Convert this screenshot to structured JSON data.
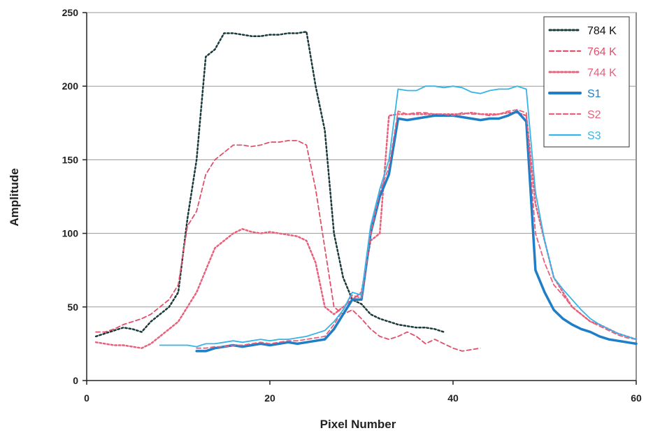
{
  "chart_data": {
    "type": "line",
    "title": "",
    "xlabel": "Pixel Number",
    "ylabel": "Amplitude",
    "xlim": [
      0,
      60
    ],
    "ylim": [
      0,
      250
    ],
    "x_ticks": [
      0,
      20,
      40,
      60
    ],
    "y_ticks": [
      0,
      50,
      100,
      150,
      200,
      250
    ],
    "grid": "horizontal",
    "legend_position": "top-right",
    "series": [
      {
        "name": "784 K",
        "color": "#1a3a3a",
        "style": "dotted",
        "x": [
          1,
          2,
          3,
          4,
          5,
          6,
          7,
          8,
          9,
          10,
          11,
          12,
          13,
          14,
          15,
          16,
          17,
          18,
          19,
          20,
          21,
          22,
          23,
          24,
          25,
          26,
          27,
          28,
          29,
          30,
          31,
          32,
          33,
          34,
          35,
          36,
          37,
          38,
          39
        ],
        "y": [
          30,
          32,
          34,
          36,
          35,
          33,
          40,
          45,
          50,
          60,
          110,
          150,
          220,
          225,
          236,
          236,
          235,
          234,
          234,
          235,
          235,
          236,
          236,
          237,
          200,
          170,
          100,
          70,
          55,
          52,
          45,
          42,
          40,
          38,
          37,
          36,
          36,
          35,
          33
        ]
      },
      {
        "name": "764 K",
        "color": "#e0506a",
        "style": "dashed",
        "x": [
          1,
          2,
          3,
          4,
          5,
          6,
          7,
          8,
          9,
          10,
          11,
          12,
          13,
          14,
          15,
          16,
          17,
          18,
          19,
          20,
          21,
          22,
          23,
          24,
          25,
          26,
          27,
          28,
          29,
          30,
          31,
          32,
          33,
          34,
          35,
          36,
          37,
          38,
          39,
          40,
          41,
          42,
          43
        ],
        "y": [
          33,
          33,
          35,
          38,
          40,
          42,
          45,
          50,
          55,
          65,
          105,
          115,
          140,
          150,
          155,
          160,
          160,
          159,
          160,
          162,
          162,
          163,
          163,
          160,
          130,
          90,
          50,
          45,
          48,
          42,
          35,
          30,
          28,
          30,
          33,
          30,
          25,
          28,
          25,
          22,
          20,
          21,
          22
        ]
      },
      {
        "name": "744 K",
        "color": "#e8607a",
        "style": "dotted",
        "x": [
          1,
          2,
          3,
          4,
          5,
          6,
          7,
          8,
          9,
          10,
          11,
          12,
          13,
          14,
          15,
          16,
          17,
          18,
          19,
          20,
          21,
          22,
          23,
          24,
          25,
          26,
          27,
          28,
          29,
          30,
          31,
          32,
          33,
          34,
          35,
          36,
          37,
          38,
          39,
          40,
          41,
          42,
          43,
          44,
          45,
          46,
          47,
          48,
          49,
          50,
          51,
          52,
          53,
          54,
          55,
          56,
          57,
          58,
          59,
          60
        ],
        "y": [
          26,
          25,
          24,
          24,
          23,
          22,
          25,
          30,
          35,
          40,
          50,
          60,
          75,
          90,
          95,
          100,
          103,
          101,
          100,
          101,
          100,
          99,
          98,
          95,
          80,
          50,
          45,
          50,
          55,
          60,
          95,
          100,
          180,
          181,
          181,
          181,
          181,
          181,
          181,
          181,
          181,
          182,
          181,
          181,
          181,
          182,
          182,
          180,
          120,
          95,
          70,
          60,
          50,
          45,
          40,
          38,
          35,
          32,
          30,
          28
        ]
      },
      {
        "name": "S1",
        "color": "#1e7ec8",
        "style": "solid-thick",
        "x": [
          12,
          13,
          14,
          15,
          16,
          17,
          18,
          19,
          20,
          21,
          22,
          23,
          24,
          25,
          26,
          27,
          28,
          29,
          30,
          31,
          32,
          33,
          34,
          35,
          36,
          37,
          38,
          39,
          40,
          41,
          42,
          43,
          44,
          45,
          46,
          47,
          48,
          49,
          50,
          51,
          52,
          53,
          54,
          55,
          56,
          57,
          58,
          59,
          60
        ],
        "y": [
          20,
          20,
          22,
          23,
          24,
          23,
          24,
          25,
          24,
          25,
          26,
          25,
          26,
          27,
          28,
          35,
          45,
          55,
          55,
          100,
          125,
          140,
          178,
          177,
          178,
          179,
          180,
          180,
          180,
          179,
          178,
          177,
          178,
          178,
          180,
          183,
          176,
          75,
          60,
          48,
          42,
          38,
          35,
          33,
          30,
          28,
          27,
          26,
          25
        ]
      },
      {
        "name": "S2",
        "color": "#e8607a",
        "style": "dashed",
        "x": [
          12,
          13,
          14,
          15,
          16,
          17,
          18,
          19,
          20,
          21,
          22,
          23,
          24,
          25,
          26,
          27,
          28,
          29,
          30,
          31,
          32,
          33,
          34,
          35,
          36,
          37,
          38,
          39,
          40,
          41,
          42,
          43,
          44,
          45,
          46,
          47,
          48,
          49,
          50,
          51,
          52,
          53,
          54,
          55,
          56,
          57,
          58,
          59,
          60
        ],
        "y": [
          22,
          22,
          23,
          23,
          24,
          24,
          25,
          26,
          25,
          26,
          27,
          27,
          28,
          29,
          30,
          38,
          48,
          58,
          56,
          100,
          128,
          145,
          183,
          181,
          182,
          182,
          181,
          181,
          180,
          182,
          181,
          181,
          180,
          181,
          183,
          184,
          182,
          100,
          80,
          65,
          58,
          50,
          45,
          40,
          37,
          34,
          31,
          29,
          28
        ]
      },
      {
        "name": "S3",
        "color": "#34b4e8",
        "style": "solid",
        "x": [
          8,
          9,
          10,
          11,
          12,
          13,
          14,
          15,
          16,
          17,
          18,
          19,
          20,
          21,
          22,
          23,
          24,
          25,
          26,
          27,
          28,
          29,
          30,
          31,
          32,
          33,
          34,
          35,
          36,
          37,
          38,
          39,
          40,
          41,
          42,
          43,
          44,
          45,
          46,
          47,
          48,
          49,
          50,
          51,
          52,
          53,
          54,
          55,
          56,
          57,
          58,
          59,
          60
        ],
        "y": [
          24,
          24,
          24,
          24,
          23,
          25,
          25,
          26,
          27,
          26,
          27,
          28,
          27,
          28,
          28,
          29,
          30,
          32,
          34,
          40,
          48,
          60,
          58,
          105,
          130,
          150,
          198,
          197,
          197,
          200,
          200,
          199,
          200,
          199,
          196,
          195,
          197,
          198,
          198,
          200,
          198,
          128,
          95,
          70,
          62,
          55,
          48,
          42,
          38,
          35,
          32,
          30,
          28
        ]
      }
    ]
  }
}
